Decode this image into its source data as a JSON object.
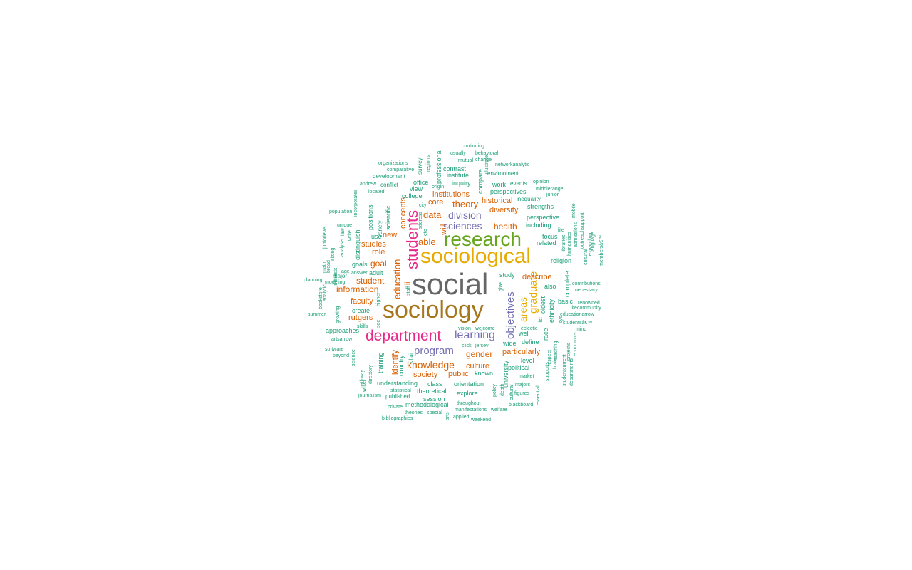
{
  "palette": {
    "g": "#1b9e77",
    "o": "#d95f02",
    "p": "#7570b3",
    "m": "#e7298a",
    "l": "#66a61e",
    "y": "#e6ab02",
    "b": "#a6761d",
    "k": "#666666"
  },
  "words": [
    {
      "t": "social",
      "c": "k"
    },
    {
      "t": "sociology",
      "c": "b"
    },
    {
      "t": "sociological",
      "c": "y"
    },
    {
      "t": "research",
      "c": "l"
    },
    {
      "t": "department",
      "c": "m"
    },
    {
      "t": "students",
      "c": "m"
    },
    {
      "t": "learning",
      "c": "p"
    },
    {
      "t": "program",
      "c": "p"
    },
    {
      "t": "objectives",
      "c": "p"
    },
    {
      "t": "graduate",
      "c": "y"
    },
    {
      "t": "areas",
      "c": "y"
    },
    {
      "t": "division",
      "c": "p"
    },
    {
      "t": "sciences",
      "c": "p"
    },
    {
      "t": "knowledge",
      "c": "o"
    },
    {
      "t": "education",
      "c": "o"
    },
    {
      "t": "theory",
      "c": "o"
    },
    {
      "t": "able",
      "c": "o"
    },
    {
      "t": "data",
      "c": "o"
    },
    {
      "t": "health",
      "c": "o"
    },
    {
      "t": "goal",
      "c": "o"
    },
    {
      "t": "student",
      "c": "o"
    },
    {
      "t": "information",
      "c": "o"
    },
    {
      "t": "gender",
      "c": "o"
    },
    {
      "t": "institutions",
      "c": "o"
    },
    {
      "t": "historical",
      "c": "o"
    },
    {
      "t": "diversity",
      "c": "o"
    },
    {
      "t": "core",
      "c": "o"
    },
    {
      "t": "studies",
      "c": "o"
    },
    {
      "t": "new",
      "c": "o"
    },
    {
      "t": "role",
      "c": "o"
    },
    {
      "t": "faculty",
      "c": "o"
    },
    {
      "t": "rutgers",
      "c": "o"
    },
    {
      "t": "describe",
      "c": "o"
    },
    {
      "t": "culture",
      "c": "o"
    },
    {
      "t": "public",
      "c": "o"
    },
    {
      "t": "society",
      "c": "o"
    },
    {
      "t": "particularly",
      "c": "o"
    },
    {
      "t": "will",
      "c": "o"
    },
    {
      "t": "concepts",
      "c": "o"
    },
    {
      "t": "identify",
      "c": "o"
    },
    {
      "t": "iii",
      "c": "o"
    },
    {
      "t": "inquiry",
      "c": "g"
    },
    {
      "t": "institute",
      "c": "g"
    },
    {
      "t": "contrast",
      "c": "g"
    },
    {
      "t": "office",
      "c": "g"
    },
    {
      "t": "view",
      "c": "g"
    },
    {
      "t": "college",
      "c": "g"
    },
    {
      "t": "work",
      "c": "g"
    },
    {
      "t": "perspectives",
      "c": "g"
    },
    {
      "t": "strengths",
      "c": "g"
    },
    {
      "t": "perspective",
      "c": "g"
    },
    {
      "t": "including",
      "c": "g"
    },
    {
      "t": "focus",
      "c": "g"
    },
    {
      "t": "related",
      "c": "g"
    },
    {
      "t": "religion",
      "c": "g"
    },
    {
      "t": "study",
      "c": "g"
    },
    {
      "t": "also",
      "c": "g"
    },
    {
      "t": "basic",
      "c": "g"
    },
    {
      "t": "well",
      "c": "g"
    },
    {
      "t": "define",
      "c": "g"
    },
    {
      "t": "wide",
      "c": "g"
    },
    {
      "t": "level",
      "c": "g"
    },
    {
      "t": "political",
      "c": "g"
    },
    {
      "t": "known",
      "c": "g"
    },
    {
      "t": "orientation",
      "c": "g"
    },
    {
      "t": "explore",
      "c": "g"
    },
    {
      "t": "class",
      "c": "g"
    },
    {
      "t": "understanding",
      "c": "g"
    },
    {
      "t": "theoretical",
      "c": "g"
    },
    {
      "t": "session",
      "c": "g"
    },
    {
      "t": "methodological",
      "c": "g"
    },
    {
      "t": "create",
      "c": "g"
    },
    {
      "t": "goals",
      "c": "g"
    },
    {
      "t": "adult",
      "c": "g"
    },
    {
      "t": "use",
      "c": "g"
    },
    {
      "t": "approaches",
      "c": "g"
    },
    {
      "t": "development",
      "c": "g"
    },
    {
      "t": "conflict",
      "c": "g"
    },
    {
      "t": "environment",
      "c": "g"
    },
    {
      "t": "events",
      "c": "g"
    },
    {
      "t": "inequality",
      "c": "g"
    },
    {
      "t": "oldest",
      "c": "g"
    },
    {
      "t": "ethnicity",
      "c": "g"
    },
    {
      "t": "complete",
      "c": "g"
    },
    {
      "t": "race",
      "c": "g"
    },
    {
      "t": "university",
      "c": "g"
    },
    {
      "t": "country",
      "c": "g"
    },
    {
      "t": "training",
      "c": "g"
    },
    {
      "t": "positions",
      "c": "g"
    },
    {
      "t": "distinguish",
      "c": "g"
    },
    {
      "t": "scientific",
      "c": "g"
    },
    {
      "t": "professional",
      "c": "g"
    },
    {
      "t": "compare",
      "c": "g"
    },
    {
      "t": "major",
      "c": "g"
    },
    {
      "t": "market",
      "c": "g"
    },
    {
      "t": "majors",
      "c": "g"
    },
    {
      "t": "figures",
      "c": "g"
    },
    {
      "t": "published",
      "c": "g"
    },
    {
      "t": "statistical",
      "c": "g"
    },
    {
      "t": "private",
      "c": "g"
    },
    {
      "t": "theories",
      "c": "g"
    },
    {
      "t": "special",
      "c": "g"
    },
    {
      "t": "throughout",
      "c": "g"
    },
    {
      "t": "manifestations",
      "c": "g"
    },
    {
      "t": "welfare",
      "c": "g"
    },
    {
      "t": "blackboard",
      "c": "g"
    },
    {
      "t": "applied",
      "c": "g"
    },
    {
      "t": "weekend",
      "c": "g"
    },
    {
      "t": "bibliographies",
      "c": "g"
    },
    {
      "t": "journalism",
      "c": "g"
    },
    {
      "t": "software",
      "c": "g"
    },
    {
      "t": "beyond",
      "c": "g"
    },
    {
      "t": "artsarrow",
      "c": "g"
    },
    {
      "t": "summer",
      "c": "g"
    },
    {
      "t": "planning",
      "c": "g"
    },
    {
      "t": "modeling",
      "c": "g"
    },
    {
      "t": "answer",
      "c": "g"
    },
    {
      "t": "age",
      "c": "g"
    },
    {
      "t": "population",
      "c": "g"
    },
    {
      "t": "unique",
      "c": "g"
    },
    {
      "t": "andrew",
      "c": "g"
    },
    {
      "t": "located",
      "c": "g"
    },
    {
      "t": "organizations",
      "c": "g"
    },
    {
      "t": "comparative",
      "c": "g"
    },
    {
      "t": "continuing",
      "c": "g"
    },
    {
      "t": "usually",
      "c": "g"
    },
    {
      "t": "behavioral",
      "c": "g"
    },
    {
      "t": "mutual",
      "c": "g"
    },
    {
      "t": "change",
      "c": "g"
    },
    {
      "t": "networkanalytic",
      "c": "g"
    },
    {
      "t": "opinion",
      "c": "g"
    },
    {
      "t": "middlerange",
      "c": "g"
    },
    {
      "t": "junior",
      "c": "g"
    },
    {
      "t": "origin",
      "c": "g"
    },
    {
      "t": "city",
      "c": "g"
    },
    {
      "t": "life",
      "c": "g"
    },
    {
      "t": "vision",
      "c": "g"
    },
    {
      "t": "welcome",
      "c": "g"
    },
    {
      "t": "eclectic",
      "c": "g"
    },
    {
      "t": "click",
      "c": "g"
    },
    {
      "t": "jersey",
      "c": "g"
    },
    {
      "t": "contributions",
      "c": "g"
    },
    {
      "t": "necessary",
      "c": "g"
    },
    {
      "t": "renowned",
      "c": "g"
    },
    {
      "t": "educationarrow",
      "c": "g"
    },
    {
      "t": "lifecommunity",
      "c": "g"
    },
    {
      "t": "studentsâ€™",
      "c": "g"
    },
    {
      "t": "mind",
      "c": "g"
    },
    {
      "t": "skills",
      "c": "g"
    },
    {
      "t": "variety",
      "c": "g"
    },
    {
      "t": "survey",
      "c": "g"
    },
    {
      "t": "regions",
      "c": "g"
    },
    {
      "t": "illustrate",
      "c": "g"
    },
    {
      "t": "incorporates",
      "c": "g"
    },
    {
      "t": "growing",
      "c": "g"
    },
    {
      "t": "interests",
      "c": "g"
    },
    {
      "t": "analysis",
      "c": "g"
    },
    {
      "t": "law",
      "c": "g"
    },
    {
      "t": "write",
      "c": "g"
    },
    {
      "t": "sitting",
      "c": "g"
    },
    {
      "t": "broad",
      "c": "g"
    },
    {
      "t": "math",
      "c": "g"
    },
    {
      "t": "juniorlevel",
      "c": "g"
    },
    {
      "t": "bookstore",
      "c": "g"
    },
    {
      "t": "analytic",
      "c": "g"
    },
    {
      "t": "higher",
      "c": "g"
    },
    {
      "t": "see",
      "c": "g"
    },
    {
      "t": "staff",
      "c": "g"
    },
    {
      "t": "etc",
      "c": "g"
    },
    {
      "t": "address",
      "c": "g"
    },
    {
      "t": "science",
      "c": "g"
    },
    {
      "t": "pathway",
      "c": "g"
    },
    {
      "t": "writer",
      "c": "g"
    },
    {
      "t": "directory",
      "c": "g"
    },
    {
      "t": "chair",
      "c": "g"
    },
    {
      "t": "give",
      "c": "g"
    },
    {
      "t": "policy",
      "c": "g"
    },
    {
      "t": "depth",
      "c": "g"
    },
    {
      "t": "cultural",
      "c": "g"
    },
    {
      "t": "essential",
      "c": "g"
    },
    {
      "t": "arts",
      "c": "g"
    },
    {
      "t": "supports",
      "c": "g"
    },
    {
      "t": "brain",
      "c": "g"
    },
    {
      "t": "respect",
      "c": "g"
    },
    {
      "t": "teaching",
      "c": "g"
    },
    {
      "t": "studentcurrent",
      "c": "g"
    },
    {
      "t": "departments",
      "c": "g"
    },
    {
      "t": "projects",
      "c": "g"
    },
    {
      "t": "economics",
      "c": "g"
    },
    {
      "t": "sys",
      "c": "g"
    },
    {
      "t": "list",
      "c": "g"
    },
    {
      "t": "libraries",
      "c": "g"
    },
    {
      "t": "humanities",
      "c": "g"
    },
    {
      "t": "admissions",
      "c": "g"
    },
    {
      "t": "outreachsupport",
      "c": "g"
    },
    {
      "t": "cultural",
      "c": "g"
    },
    {
      "t": "expanding",
      "c": "g"
    },
    {
      "t": "language",
      "c": "g"
    },
    {
      "t": "membersâ€™",
      "c": "g"
    },
    {
      "t": "mobile",
      "c": "g"
    }
  ]
}
